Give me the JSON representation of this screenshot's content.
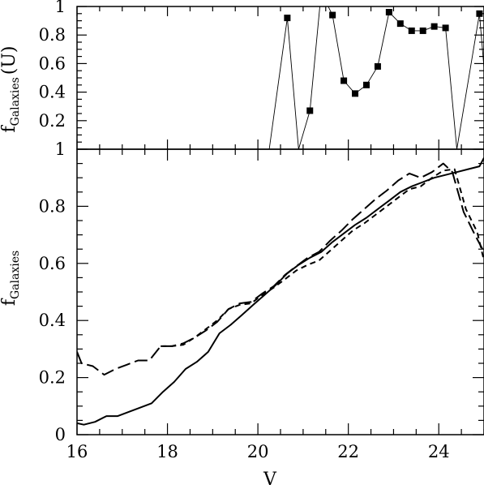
{
  "chart_data": [
    {
      "type": "line",
      "panel": "top",
      "xlabel": "",
      "ylabel_main": "f",
      "ylabel_sub": "Galaxies",
      "ylabel_suffix": "(U)",
      "xlim": [
        16,
        25
      ],
      "ylim": [
        0,
        1
      ],
      "ytick_values": [
        0.2,
        0.4,
        0.6,
        0.8,
        1
      ],
      "ytick_labels": [
        "0.2",
        "0.4",
        "0.6",
        "0.8",
        "1"
      ],
      "series": [
        {
          "style": "thin-line-square-markers",
          "x": [
            20.25,
            20.65,
            20.9,
            21.15,
            21.4,
            21.65,
            21.9,
            22.15,
            22.4,
            22.65,
            22.9,
            23.15,
            23.4,
            23.65,
            23.9,
            24.15,
            24.4,
            24.9,
            25.15
          ],
          "y": [
            0.0,
            0.92,
            0.0,
            0.27,
            1.1,
            0.94,
            0.48,
            0.39,
            0.45,
            0.58,
            0.96,
            0.88,
            0.83,
            0.83,
            0.86,
            0.85,
            0.0,
            0.95,
            0.0
          ],
          "markers": [
            false,
            true,
            false,
            true,
            false,
            true,
            true,
            true,
            true,
            true,
            true,
            true,
            true,
            true,
            true,
            true,
            false,
            true,
            false
          ]
        }
      ]
    },
    {
      "type": "line",
      "panel": "bottom",
      "xlabel": "V",
      "ylabel_main": "f",
      "ylabel_sub": "Galaxies",
      "xlim": [
        16,
        25
      ],
      "ylim": [
        0,
        1
      ],
      "xtick_values": [
        16,
        18,
        20,
        22,
        24
      ],
      "xtick_labels": [
        "16",
        "18",
        "20",
        "22",
        "24"
      ],
      "ytick_values": [
        0,
        0.2,
        0.4,
        0.6,
        0.8,
        1
      ],
      "ytick_labels": [
        "0",
        "0.2",
        "0.4",
        "0.6",
        "0.8",
        "1"
      ],
      "series": [
        {
          "style": "solid",
          "x": [
            16.0,
            16.15,
            16.4,
            16.65,
            16.9,
            17.15,
            17.4,
            17.65,
            17.9,
            18.15,
            18.4,
            18.65,
            18.9,
            19.15,
            19.4,
            19.65,
            19.9,
            20.15,
            20.4,
            20.65,
            20.9,
            21.15,
            21.4,
            21.65,
            21.9,
            22.15,
            22.4,
            22.65,
            22.9,
            23.15,
            23.4,
            23.65,
            23.9,
            24.15,
            24.4,
            24.65,
            24.9,
            25.0
          ],
          "y": [
            0.04,
            0.035,
            0.045,
            0.065,
            0.065,
            0.08,
            0.095,
            0.11,
            0.15,
            0.185,
            0.23,
            0.255,
            0.29,
            0.355,
            0.385,
            0.42,
            0.455,
            0.49,
            0.525,
            0.565,
            0.595,
            0.62,
            0.64,
            0.675,
            0.705,
            0.735,
            0.76,
            0.79,
            0.82,
            0.85,
            0.87,
            0.885,
            0.9,
            0.91,
            0.92,
            0.93,
            0.94,
            0.97
          ]
        },
        {
          "style": "long-dash",
          "x": [
            16.0,
            16.1,
            16.35,
            16.6,
            16.85,
            17.1,
            17.35,
            17.6,
            17.85,
            18.1,
            18.35,
            18.6,
            18.85,
            19.1,
            19.35,
            19.6,
            19.85,
            20.1,
            20.35,
            20.6,
            20.85,
            21.1,
            21.35,
            21.6,
            21.85,
            22.1,
            22.35,
            22.6,
            22.85,
            23.1,
            23.35,
            23.6,
            23.85,
            24.1,
            24.3,
            24.55,
            24.8,
            25.0
          ],
          "y": [
            0.29,
            0.25,
            0.24,
            0.21,
            0.23,
            0.245,
            0.26,
            0.26,
            0.31,
            0.31,
            0.32,
            0.34,
            0.365,
            0.395,
            0.44,
            0.46,
            0.465,
            0.495,
            0.52,
            0.56,
            0.59,
            0.62,
            0.64,
            0.68,
            0.715,
            0.755,
            0.79,
            0.825,
            0.855,
            0.89,
            0.915,
            0.9,
            0.92,
            0.95,
            0.92,
            0.78,
            0.7,
            0.64
          ]
        },
        {
          "style": "short-dash",
          "x": [
            17.85,
            18.1,
            18.35,
            18.6,
            18.85,
            19.1,
            19.35,
            19.6,
            19.85,
            20.1,
            20.35,
            20.6,
            20.85,
            21.1,
            21.35,
            21.6,
            21.85,
            22.1,
            22.35,
            22.6,
            22.85,
            23.1,
            23.35,
            23.6,
            23.85,
            24.1,
            24.35,
            24.6,
            24.85,
            25.0
          ],
          "y": [
            0.31,
            0.31,
            0.315,
            0.34,
            0.37,
            0.4,
            0.44,
            0.455,
            0.46,
            0.49,
            0.515,
            0.545,
            0.575,
            0.595,
            0.61,
            0.645,
            0.68,
            0.715,
            0.74,
            0.77,
            0.8,
            0.83,
            0.86,
            0.87,
            0.9,
            0.925,
            0.93,
            0.79,
            0.71,
            0.61
          ]
        }
      ]
    }
  ]
}
